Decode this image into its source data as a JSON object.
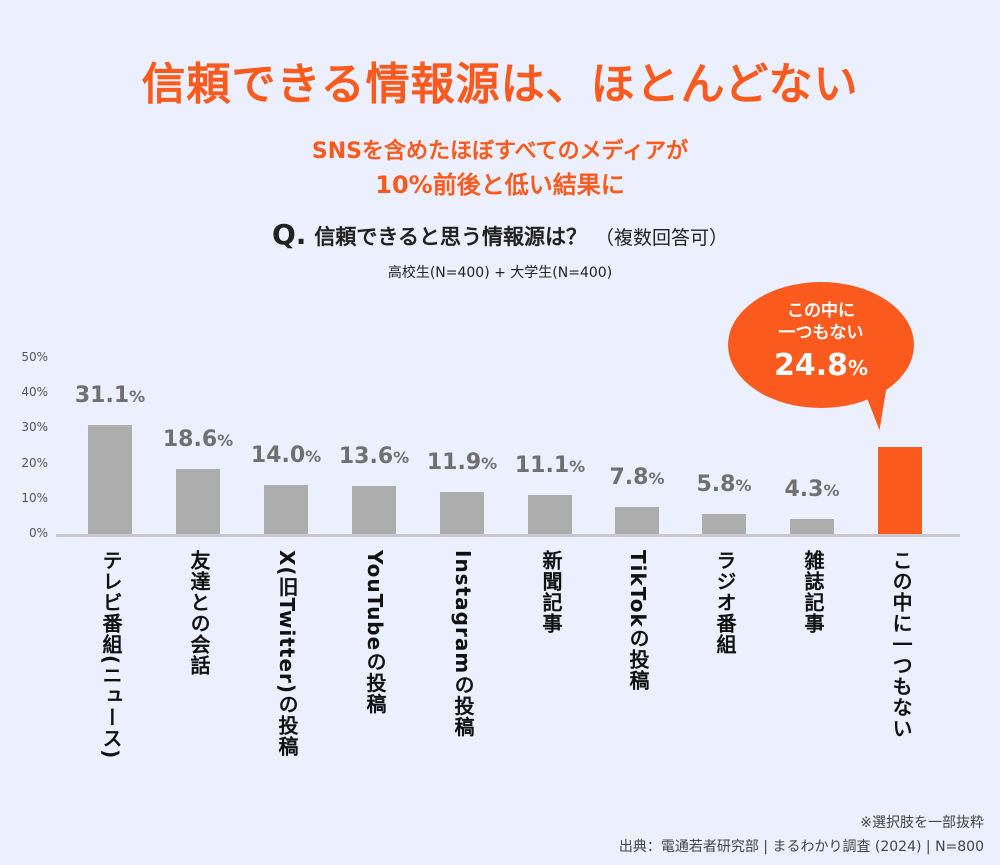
{
  "title": "信頼できる情報源は、ほとんどない",
  "subtitle_line1": "SNSを含めたほぼすべてのメディアが",
  "subtitle_line2": "10%前後と低い結果に",
  "question": {
    "mark": "Q.",
    "text": "信頼できると思う情報源は？",
    "note": "（複数回答可）"
  },
  "sample": "高校生(N=400) + 大学生(N=400)",
  "callout": {
    "text1": "この中に",
    "text2": "一つもない",
    "value": "24.8",
    "unit": "%"
  },
  "footnote": "※選択肢を一部抜粋",
  "source": "出典：電通若者研究部 | まるわかり調査 (2024) | N=800",
  "colors": {
    "background": "#eceffd",
    "accent": "#fb5a1f",
    "bar": "#adadad"
  },
  "chart_data": {
    "type": "bar",
    "ylim": [
      0,
      50
    ],
    "yticks": [
      "0%",
      "10%",
      "20%",
      "30%",
      "40%",
      "50%"
    ],
    "grid": false,
    "categories": [
      "テレビ番組(ニュース)",
      "友達との会話",
      "X(旧Twitter)の投稿",
      "YouTubeの投稿",
      "Instagramの投稿",
      "新聞記事",
      "TikTokの投稿",
      "ラジオ番組",
      "雑誌記事",
      "この中に一つもない"
    ],
    "values": [
      31.1,
      18.6,
      14.0,
      13.6,
      11.9,
      11.1,
      7.8,
      5.8,
      4.3,
      24.8
    ],
    "labels": [
      "31.1",
      "18.6",
      "14.0",
      "13.6",
      "11.9",
      "11.1",
      "7.8",
      "5.8",
      "4.3",
      ""
    ],
    "unit": "%",
    "highlight_index": 9
  }
}
